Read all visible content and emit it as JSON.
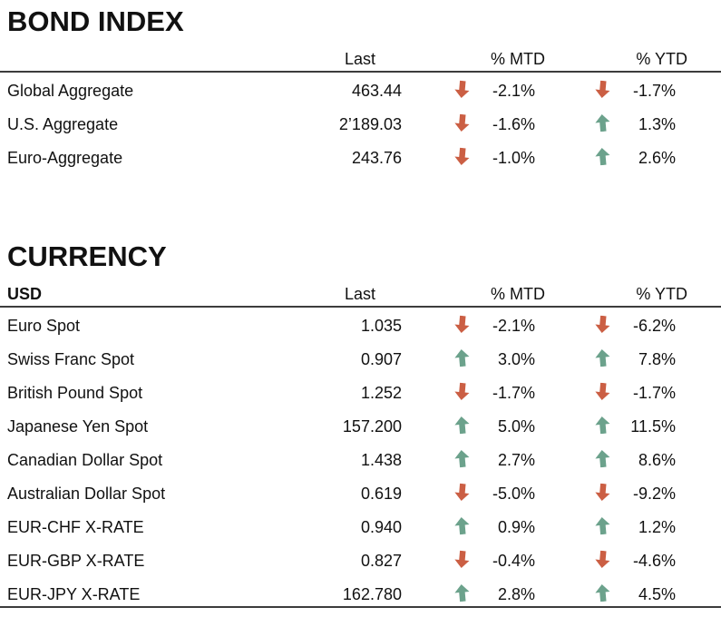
{
  "colors": {
    "up": "#6CA28C",
    "down": "#CB5F44",
    "rule": "#3C3C3C",
    "text": "#111111"
  },
  "sections": [
    {
      "title": "BOND INDEX",
      "key_header": "",
      "columns": {
        "last": "Last",
        "mtd": "% MTD",
        "ytd": "% YTD"
      },
      "rows": [
        {
          "name": "Global Aggregate",
          "last": "463.44",
          "mtd": {
            "dir": "down",
            "value": "-2.1%"
          },
          "ytd": {
            "dir": "down",
            "value": "-1.7%"
          }
        },
        {
          "name": "U.S. Aggregate",
          "last": "2’189.03",
          "mtd": {
            "dir": "down",
            "value": "-1.6%"
          },
          "ytd": {
            "dir": "up",
            "value": "1.3%"
          }
        },
        {
          "name": "Euro-Aggregate",
          "last": "243.76",
          "mtd": {
            "dir": "down",
            "value": "-1.0%"
          },
          "ytd": {
            "dir": "up",
            "value": "2.6%"
          }
        }
      ]
    },
    {
      "title": "CURRENCY",
      "key_header": "USD",
      "columns": {
        "last": "Last",
        "mtd": "% MTD",
        "ytd": "% YTD"
      },
      "rows": [
        {
          "name": "Euro Spot",
          "last": "1.035",
          "mtd": {
            "dir": "down",
            "value": "-2.1%"
          },
          "ytd": {
            "dir": "down",
            "value": "-6.2%"
          }
        },
        {
          "name": "Swiss Franc Spot",
          "last": "0.907",
          "mtd": {
            "dir": "up",
            "value": "3.0%"
          },
          "ytd": {
            "dir": "up",
            "value": "7.8%"
          }
        },
        {
          "name": "British Pound Spot",
          "last": "1.252",
          "mtd": {
            "dir": "down",
            "value": "-1.7%"
          },
          "ytd": {
            "dir": "down",
            "value": "-1.7%"
          }
        },
        {
          "name": "Japanese Yen Spot",
          "last": "157.200",
          "mtd": {
            "dir": "up",
            "value": "5.0%"
          },
          "ytd": {
            "dir": "up",
            "value": "11.5%"
          }
        },
        {
          "name": "Canadian Dollar Spot",
          "last": "1.438",
          "mtd": {
            "dir": "up",
            "value": "2.7%"
          },
          "ytd": {
            "dir": "up",
            "value": "8.6%"
          }
        },
        {
          "name": "Australian Dollar Spot",
          "last": "0.619",
          "mtd": {
            "dir": "down",
            "value": "-5.0%"
          },
          "ytd": {
            "dir": "down",
            "value": "-9.2%"
          }
        },
        {
          "name": "EUR-CHF X-RATE",
          "last": "0.940",
          "mtd": {
            "dir": "up",
            "value": "0.9%"
          },
          "ytd": {
            "dir": "up",
            "value": "1.2%"
          }
        },
        {
          "name": "EUR-GBP X-RATE",
          "last": "0.827",
          "mtd": {
            "dir": "down",
            "value": "-0.4%"
          },
          "ytd": {
            "dir": "down",
            "value": "-4.6%"
          }
        },
        {
          "name": "EUR-JPY X-RATE",
          "last": "162.780",
          "mtd": {
            "dir": "up",
            "value": "2.8%"
          },
          "ytd": {
            "dir": "up",
            "value": "4.5%"
          }
        }
      ]
    }
  ]
}
